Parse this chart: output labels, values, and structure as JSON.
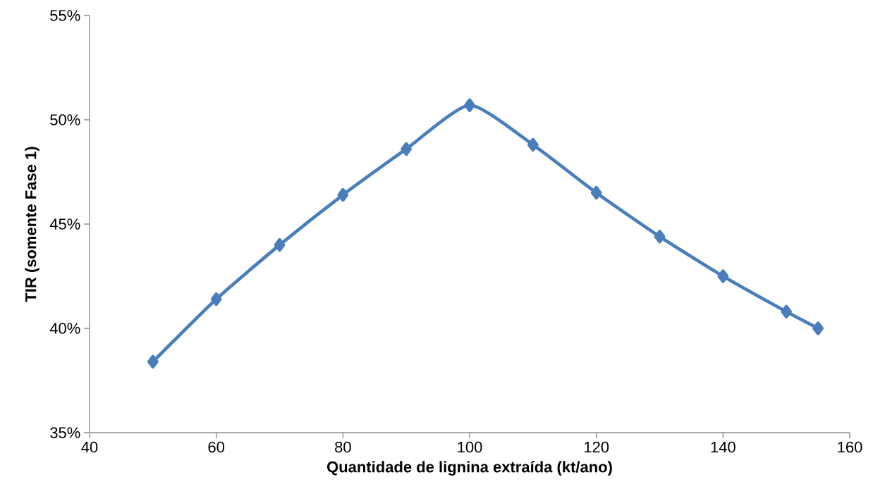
{
  "chart_data": {
    "type": "line",
    "xlabel": "Quantidade de lignina extraída (kt/ano)",
    "ylabel": "TIR (somente Fase 1)",
    "x": [
      50,
      60,
      70,
      80,
      90,
      100,
      110,
      120,
      130,
      140,
      150,
      155
    ],
    "series": [
      {
        "color": "#4a7ebb",
        "values": [
          38.4,
          41.4,
          44.0,
          46.4,
          48.6,
          50.7,
          48.8,
          46.5,
          44.4,
          42.5,
          40.8,
          40.0
        ]
      }
    ],
    "xlim": [
      40,
      160
    ],
    "xticks": [
      40,
      60,
      80,
      100,
      120,
      140,
      160
    ],
    "ylim": [
      35,
      55
    ],
    "yticks": [
      {
        "value": 35,
        "label": "35%"
      },
      {
        "value": 40,
        "label": "40%"
      },
      {
        "value": 45,
        "label": "45%"
      },
      {
        "value": 50,
        "label": "50%"
      },
      {
        "value": 55,
        "label": "55%"
      }
    ],
    "grid": false,
    "legend": false,
    "marker": "diamond",
    "line_style": "solid"
  }
}
